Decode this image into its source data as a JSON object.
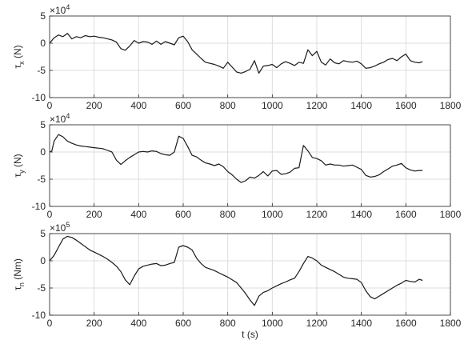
{
  "chart_data": [
    {
      "type": "line",
      "ylabel_symbol": "τ",
      "ylabel_sub": "x",
      "ylabel_unit": " (N)",
      "exponent_base": "×10",
      "exponent_power": "4",
      "xlabel": "",
      "xlim": [
        0,
        1800
      ],
      "ylim": [
        -10,
        5
      ],
      "xticks": [
        0,
        200,
        400,
        600,
        800,
        1000,
        1200,
        1400,
        1600,
        1800
      ],
      "yticks": [
        5,
        0,
        -5,
        -10
      ],
      "grid": true,
      "x": [
        0,
        20,
        40,
        60,
        80,
        100,
        120,
        140,
        160,
        180,
        200,
        220,
        240,
        260,
        280,
        300,
        320,
        340,
        360,
        380,
        400,
        420,
        440,
        460,
        480,
        500,
        520,
        540,
        560,
        580,
        600,
        620,
        640,
        660,
        680,
        700,
        720,
        740,
        760,
        780,
        800,
        820,
        840,
        860,
        880,
        900,
        920,
        940,
        960,
        980,
        1000,
        1020,
        1040,
        1060,
        1080,
        1100,
        1120,
        1140,
        1160,
        1180,
        1200,
        1220,
        1240,
        1260,
        1280,
        1300,
        1320,
        1340,
        1360,
        1380,
        1400,
        1420,
        1440,
        1460,
        1480,
        1500,
        1520,
        1540,
        1560,
        1580,
        1600,
        1620,
        1640,
        1660,
        1675
      ],
      "values": [
        0,
        1,
        1.5,
        1.2,
        1.8,
        0.8,
        1.2,
        1,
        1.4,
        1.2,
        1.3,
        1.1,
        1,
        0.8,
        0.6,
        0.2,
        -1,
        -1.3,
        -0.5,
        0.5,
        0,
        0.3,
        0.2,
        -0.2,
        0.4,
        -0.2,
        0.3,
        0,
        -0.3,
        1,
        1.3,
        0.3,
        -1.2,
        -2,
        -2.8,
        -3.5,
        -3.7,
        -3.9,
        -4.2,
        -4.6,
        -3.5,
        -4.4,
        -5.3,
        -5.5,
        -5.2,
        -4.8,
        -3.2,
        -5.5,
        -4.2,
        -4.1,
        -3.9,
        -4.5,
        -3.8,
        -3.4,
        -3.7,
        -4.1,
        -3.5,
        -3.7,
        -1.2,
        -2.3,
        -1.5,
        -3.5,
        -4,
        -2.9,
        -3.6,
        -3.8,
        -3.2,
        -3.4,
        -3.5,
        -3.3,
        -3.8,
        -4.6,
        -4.5,
        -4.2,
        -3.8,
        -3.5,
        -3,
        -2.8,
        -3.2,
        -2.5,
        -2,
        -3.2,
        -3.5,
        -3.6,
        -3.4
      ]
    },
    {
      "type": "line",
      "ylabel_symbol": "τ",
      "ylabel_sub": "y",
      "ylabel_unit": " (N)",
      "exponent_base": "×10",
      "exponent_power": "4",
      "xlabel": "",
      "xlim": [
        0,
        1800
      ],
      "ylim": [
        -10,
        5
      ],
      "xticks": [
        0,
        200,
        400,
        600,
        800,
        1000,
        1200,
        1400,
        1600,
        1800
      ],
      "yticks": [
        5,
        0,
        -5,
        -10
      ],
      "grid": true,
      "x": [
        0,
        10,
        20,
        40,
        60,
        80,
        100,
        120,
        140,
        160,
        180,
        200,
        220,
        240,
        260,
        280,
        300,
        320,
        340,
        360,
        380,
        400,
        420,
        440,
        460,
        480,
        500,
        520,
        540,
        560,
        580,
        600,
        620,
        640,
        660,
        680,
        700,
        720,
        740,
        760,
        780,
        800,
        820,
        840,
        860,
        880,
        900,
        920,
        940,
        960,
        980,
        1000,
        1020,
        1040,
        1060,
        1080,
        1100,
        1120,
        1140,
        1160,
        1180,
        1200,
        1220,
        1240,
        1260,
        1280,
        1300,
        1320,
        1340,
        1360,
        1380,
        1400,
        1420,
        1440,
        1460,
        1480,
        1500,
        1520,
        1540,
        1560,
        1580,
        1600,
        1620,
        1640,
        1660,
        1675
      ],
      "values": [
        0,
        0.2,
        2,
        3.2,
        2.8,
        2,
        1.6,
        1.3,
        1.1,
        1,
        0.9,
        0.8,
        0.7,
        0.6,
        0.3,
        0,
        -1.5,
        -2.3,
        -1.6,
        -1,
        -0.5,
        0,
        0.1,
        0,
        0.2,
        0.1,
        -0.3,
        -0.5,
        -0.6,
        0,
        2.9,
        2.5,
        1,
        -0.6,
        -0.9,
        -1.5,
        -2,
        -2.2,
        -2.5,
        -2.2,
        -2.7,
        -3.6,
        -4.2,
        -5,
        -5.6,
        -5.3,
        -4.6,
        -4.8,
        -4.3,
        -3.6,
        -4.4,
        -3.5,
        -3.4,
        -4.1,
        -4,
        -3.7,
        -3,
        -2.9,
        1.2,
        0.2,
        -1,
        -1.2,
        -1.6,
        -2.4,
        -2.2,
        -2.4,
        -2.4,
        -2.6,
        -2.5,
        -2.4,
        -2.8,
        -3.2,
        -4.3,
        -4.6,
        -4.5,
        -4.2,
        -3.6,
        -3.1,
        -2.6,
        -2.4,
        -2.1,
        -2.9,
        -3.3,
        -3.5,
        -3.4,
        -3.4
      ]
    },
    {
      "type": "line",
      "ylabel_symbol": "τ",
      "ylabel_sub": "n",
      "ylabel_unit": " (Nm)",
      "exponent_base": "×10",
      "exponent_power": "5",
      "xlabel": "t (s)",
      "xlim": [
        0,
        1800
      ],
      "ylim": [
        -10,
        5
      ],
      "xticks": [
        0,
        200,
        400,
        600,
        800,
        1000,
        1200,
        1400,
        1600,
        1800
      ],
      "yticks": [
        5,
        0,
        -5,
        -10
      ],
      "grid": true,
      "x": [
        0,
        20,
        40,
        60,
        80,
        100,
        120,
        140,
        160,
        180,
        200,
        220,
        240,
        260,
        280,
        300,
        320,
        340,
        360,
        380,
        400,
        420,
        440,
        460,
        480,
        500,
        520,
        540,
        560,
        580,
        600,
        620,
        640,
        660,
        680,
        700,
        720,
        740,
        760,
        780,
        800,
        820,
        840,
        860,
        880,
        900,
        920,
        940,
        960,
        980,
        1000,
        1020,
        1040,
        1060,
        1080,
        1100,
        1120,
        1140,
        1160,
        1180,
        1200,
        1220,
        1240,
        1260,
        1280,
        1300,
        1320,
        1340,
        1360,
        1380,
        1400,
        1420,
        1440,
        1460,
        1480,
        1500,
        1520,
        1540,
        1560,
        1580,
        1600,
        1620,
        1640,
        1660,
        1675
      ],
      "values": [
        0,
        1,
        2.5,
        4,
        4.5,
        4.3,
        3.8,
        3.2,
        2.6,
        2,
        1.6,
        1.2,
        0.8,
        0.3,
        -0.3,
        -1,
        -2,
        -3.5,
        -4.4,
        -2.8,
        -1.5,
        -1,
        -0.8,
        -0.6,
        -0.5,
        -0.9,
        -0.8,
        -0.5,
        -0.3,
        2.5,
        2.8,
        2.5,
        2,
        0.5,
        -0.5,
        -1.2,
        -1.5,
        -1.8,
        -2.2,
        -2.6,
        -3,
        -3.5,
        -4,
        -5,
        -6,
        -7.2,
        -8.2,
        -6.5,
        -5.8,
        -5.5,
        -5,
        -4.6,
        -4.2,
        -3.9,
        -3.5,
        -3.2,
        -2,
        -0.5,
        0.8,
        0.5,
        0,
        -0.8,
        -1.2,
        -1.6,
        -2,
        -2.5,
        -3,
        -3.2,
        -3.3,
        -3.4,
        -4,
        -5.5,
        -6.6,
        -7,
        -6.5,
        -6,
        -5.5,
        -5,
        -4.5,
        -4.1,
        -3.6,
        -3.8,
        -3.9,
        -3.4,
        -3.6
      ]
    }
  ]
}
